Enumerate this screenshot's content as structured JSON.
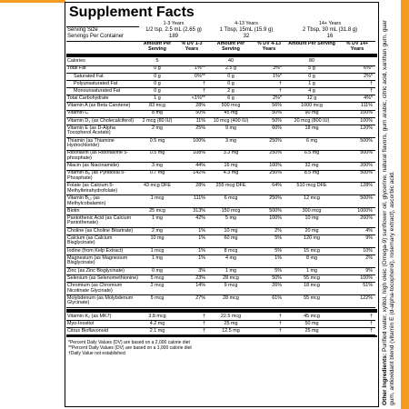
{
  "title": "Supplement Facts",
  "ages": [
    "1-3 Years",
    "4-13 Years",
    "14+ Years"
  ],
  "serving_size_label": "Serving Size",
  "serving_sizes": [
    "1/2 tsp, 2.5 mL (2.65 g)",
    "1 Tbsp, 15mL (15.9 g)",
    "2 Tbsp, 30 mL (31.8 g)"
  ],
  "servings_label": "Servings Per Container",
  "servings": [
    "189",
    "32",
    "16"
  ],
  "headers": [
    "Amount Per Serving",
    "% DV 1-3 Years",
    "Amount Per Serving",
    "% DV 4-13 Years",
    "Amount Per Serving",
    "% DV 14+ Years"
  ],
  "rows": [
    [
      "Calories",
      "5",
      "",
      "40",
      "",
      "80",
      ""
    ],
    [
      "Total Fat",
      "0 g",
      "1%**",
      "2.5 g",
      "3%*",
      "5 g",
      "6%*"
    ],
    [
      "Saturated Fat",
      "0 g",
      "0%**",
      "0 g",
      "1%*",
      "0 g",
      "2%*"
    ],
    [
      "Polyunsaturated Fat",
      "0 g",
      "†",
      "0 g",
      "†",
      "1 g",
      "†"
    ],
    [
      "Monounsaturated Fat",
      "0 g",
      "†",
      "2 g",
      "†",
      "4 g",
      "†"
    ],
    [
      "Total Carbohydrate",
      "1 g",
      "<1%**",
      "6 g",
      "2%*",
      "12 g",
      "4%*"
    ],
    [
      "Vitamin A (as Beta Carotene)",
      "83 mcg",
      "28%",
      "500 mcg",
      "56%",
      "1000 mcg",
      "111%"
    ],
    [
      "Vitamin C",
      "8 mg",
      "50%",
      "45 mg",
      "50%",
      "90 mg",
      "100%"
    ],
    [
      "Vitamin D₃ (as Cholecalciferol)",
      "2 mcg (80 IU)",
      "11%",
      "10 mcg (400 IU)",
      "50%",
      "20 mcg (800 IU)",
      "100%"
    ],
    [
      "Vitamin E (as D-Alpha Tocopherol Acetate)",
      "2 mg",
      "25%",
      "9 mg",
      "60%",
      "18 mg",
      "120%"
    ],
    [
      "Thiamin (as Thiamine Hydrochloride)",
      "0.5 mg",
      "100%",
      "3 mg",
      "250%",
      "6 mg",
      "500%"
    ],
    [
      "Riboflavin (as Riboflavine 5-phosphate)",
      "0.5 mg",
      "108%",
      "3.3 mg",
      "250%",
      "6.5 mg",
      "500%"
    ],
    [
      "Niacin (as Niacinamide)",
      "3 mg",
      "44%",
      "16 mg",
      "100%",
      "32 mg",
      "200%"
    ],
    [
      "Vitamin B₆ (as Pyridoxal 5-Phosphate)",
      "0.7 mg",
      "142%",
      "4.3 mg",
      "250%",
      "8.5 mg",
      "500%"
    ],
    [
      "Folate (as Calcium 5-Methyltetrahydrofolate)",
      "43 mcg DFE",
      "28%",
      "255 mcg DFE",
      "64%",
      "510 mcg DFE",
      "128%"
    ],
    [
      "Vitamin B₁₂ (as Methylcobalamin)",
      "1 mcg",
      "111%",
      "6 mcg",
      "250%",
      "12 mcg",
      "500%"
    ],
    [
      "Biotin",
      "25 mcg",
      "313%",
      "150 mcg",
      "500%",
      "300 mcg",
      "1000%"
    ],
    [
      "Pantothenic Acid (as Calcium Pantothenate)",
      "1 mg",
      "42%",
      "5 mg",
      "100%",
      "10 mg",
      "200%"
    ],
    [
      "Choline (as Choline Bitartrate)",
      "2 mg",
      "1%",
      "10 mg",
      "2%",
      "20 mg",
      "4%"
    ],
    [
      "Calcium (as Calcium Bisglycinate)",
      "10 mg",
      "1%",
      "60 mg",
      "5%",
      "120 mg",
      "9%"
    ],
    [
      "Iodine (from Kelp Extract)",
      "1 mcg",
      "1%",
      "8 mcg",
      "5%",
      "15 mcg",
      "10%"
    ],
    [
      "Magnesium (as Magnesium Bisglycinate)",
      "1 mg",
      "1%",
      "4 mg",
      "1%",
      "8 mg",
      "2%"
    ],
    [
      "Zinc (as Zinc Bisglycinate)",
      "0 mg",
      "3%",
      "1 mg",
      "5%",
      "1 mg",
      "9%"
    ],
    [
      "Selenium (as Selenomethionine)",
      "5 mcg",
      "23%",
      "28 mcg",
      "50%",
      "55 mcg",
      "100%"
    ],
    [
      "Chromium (as Chromium Nicotinate Glycinate)",
      "2 mcg",
      "14%",
      "9 mcg",
      "26%",
      "18 mcg",
      "51%"
    ],
    [
      "Molybdenum (as Molybdenum Glycinate)",
      "5 mcg",
      "27%",
      "28 mcg",
      "61%",
      "55 mcg",
      "122%"
    ]
  ],
  "rows2": [
    [
      "Vitamin K₂ (as MK7)",
      "3.8 mcg",
      "†",
      "22.5 mcg",
      "†",
      "45 mcg",
      "†"
    ],
    [
      "Myo-Inositol",
      "4.2 mg",
      "†",
      "25 mg",
      "†",
      "50 mg",
      "†"
    ],
    [
      "Citrus Bioflavonoid",
      "2.1 mg",
      "†",
      "12.5 mg",
      "†",
      "25 mg",
      "†"
    ]
  ],
  "footnotes": [
    "*Percent Daily Values (DV) are based on a 2,000 calorie diet",
    "**Percent Daily Values (DV) are based on a 1,000 calorie diet",
    "†Daily Value not established"
  ],
  "other_ingredients_label": "Other Ingredients:",
  "other_ingredients": "Purified water, xylitol, high oleic (Omega-9) sunflower oil, glycerine, natural flavors, gum arabic, citric acid, xanthan gum, guar gum, antioxidant blend (vitamin E (d-alpha-tocopherol), rosemary extract), ascorbic acid."
}
